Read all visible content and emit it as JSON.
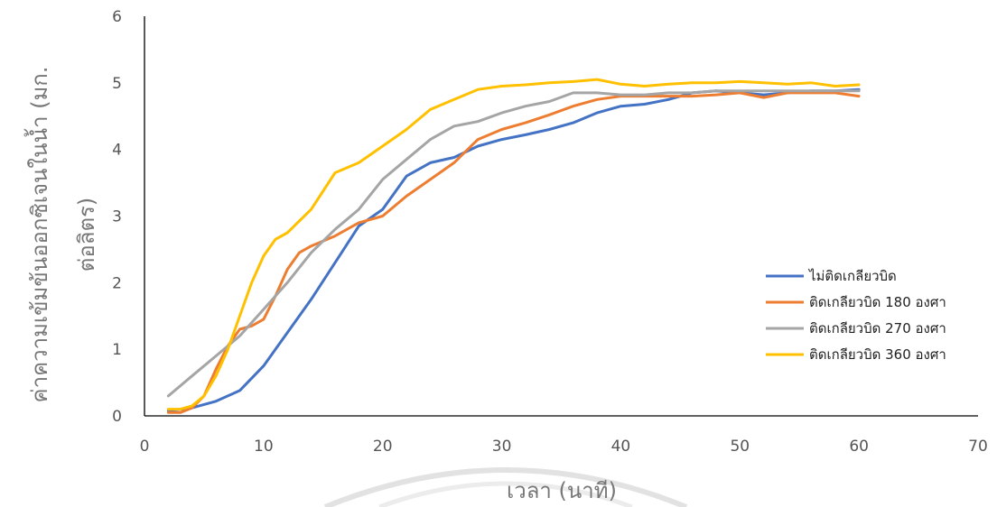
{
  "chart_data": {
    "type": "line",
    "title": "",
    "xlabel": "เวลา (นาที)",
    "ylabel_line1": "ค่าความเข้มข้นออกซิเจนในน้ำ (มก.",
    "ylabel_line2": "ต่อลิตร)",
    "xlim": [
      0,
      70
    ],
    "ylim": [
      0,
      6
    ],
    "xticks": [
      0,
      10,
      20,
      30,
      40,
      50,
      60,
      70
    ],
    "yticks": [
      0,
      1,
      2,
      3,
      4,
      5,
      6
    ],
    "grid": false,
    "legend_position": "right",
    "series": [
      {
        "name": "ไม่ติดเกลียวบิด",
        "color": "#4472C4",
        "points": [
          [
            2,
            0.08
          ],
          [
            4,
            0.12
          ],
          [
            6,
            0.22
          ],
          [
            8,
            0.38
          ],
          [
            10,
            0.75
          ],
          [
            12,
            1.25
          ],
          [
            14,
            1.75
          ],
          [
            16,
            2.3
          ],
          [
            18,
            2.85
          ],
          [
            20,
            3.1
          ],
          [
            22,
            3.6
          ],
          [
            24,
            3.8
          ],
          [
            26,
            3.88
          ],
          [
            28,
            4.05
          ],
          [
            30,
            4.15
          ],
          [
            32,
            4.22
          ],
          [
            34,
            4.3
          ],
          [
            36,
            4.4
          ],
          [
            38,
            4.55
          ],
          [
            40,
            4.65
          ],
          [
            42,
            4.68
          ],
          [
            44,
            4.75
          ],
          [
            46,
            4.85
          ],
          [
            48,
            4.88
          ],
          [
            50,
            4.85
          ],
          [
            52,
            4.82
          ],
          [
            54,
            4.85
          ],
          [
            56,
            4.88
          ],
          [
            58,
            4.88
          ],
          [
            60,
            4.9
          ]
        ]
      },
      {
        "name": "ติดเกลียวบิด 180 องศา",
        "color": "#ED7D31",
        "points": [
          [
            2,
            0.05
          ],
          [
            3,
            0.05
          ],
          [
            4,
            0.12
          ],
          [
            5,
            0.3
          ],
          [
            6,
            0.7
          ],
          [
            7,
            1.05
          ],
          [
            8,
            1.3
          ],
          [
            9,
            1.35
          ],
          [
            10,
            1.45
          ],
          [
            11,
            1.8
          ],
          [
            12,
            2.2
          ],
          [
            13,
            2.45
          ],
          [
            14,
            2.55
          ],
          [
            16,
            2.7
          ],
          [
            18,
            2.9
          ],
          [
            20,
            3.0
          ],
          [
            22,
            3.3
          ],
          [
            24,
            3.55
          ],
          [
            26,
            3.8
          ],
          [
            28,
            4.15
          ],
          [
            30,
            4.3
          ],
          [
            32,
            4.4
          ],
          [
            34,
            4.52
          ],
          [
            36,
            4.65
          ],
          [
            38,
            4.75
          ],
          [
            40,
            4.8
          ],
          [
            42,
            4.8
          ],
          [
            44,
            4.8
          ],
          [
            46,
            4.8
          ],
          [
            48,
            4.82
          ],
          [
            50,
            4.85
          ],
          [
            52,
            4.78
          ],
          [
            54,
            4.85
          ],
          [
            56,
            4.85
          ],
          [
            58,
            4.85
          ],
          [
            60,
            4.8
          ]
        ]
      },
      {
        "name": "ติดเกลียวบิด 270 องศา",
        "color": "#A5A5A5",
        "points": [
          [
            2,
            0.3
          ],
          [
            4,
            0.6
          ],
          [
            6,
            0.9
          ],
          [
            8,
            1.2
          ],
          [
            10,
            1.6
          ],
          [
            12,
            2.0
          ],
          [
            14,
            2.45
          ],
          [
            16,
            2.8
          ],
          [
            18,
            3.1
          ],
          [
            20,
            3.55
          ],
          [
            22,
            3.85
          ],
          [
            24,
            4.15
          ],
          [
            26,
            4.35
          ],
          [
            28,
            4.42
          ],
          [
            30,
            4.55
          ],
          [
            32,
            4.65
          ],
          [
            34,
            4.72
          ],
          [
            36,
            4.85
          ],
          [
            38,
            4.85
          ],
          [
            40,
            4.82
          ],
          [
            42,
            4.82
          ],
          [
            44,
            4.85
          ],
          [
            46,
            4.85
          ],
          [
            48,
            4.88
          ],
          [
            50,
            4.88
          ],
          [
            52,
            4.88
          ],
          [
            54,
            4.88
          ],
          [
            56,
            4.88
          ],
          [
            58,
            4.88
          ],
          [
            60,
            4.88
          ]
        ]
      },
      {
        "name": "ติดเกลียวบิด 360 องศา",
        "color": "#FFC000",
        "points": [
          [
            2,
            0.1
          ],
          [
            3,
            0.1
          ],
          [
            4,
            0.15
          ],
          [
            5,
            0.3
          ],
          [
            6,
            0.6
          ],
          [
            7,
            1.0
          ],
          [
            8,
            1.5
          ],
          [
            9,
            2.0
          ],
          [
            10,
            2.4
          ],
          [
            11,
            2.65
          ],
          [
            12,
            2.75
          ],
          [
            14,
            3.1
          ],
          [
            16,
            3.65
          ],
          [
            18,
            3.8
          ],
          [
            20,
            4.05
          ],
          [
            22,
            4.3
          ],
          [
            24,
            4.6
          ],
          [
            26,
            4.75
          ],
          [
            28,
            4.9
          ],
          [
            30,
            4.95
          ],
          [
            32,
            4.97
          ],
          [
            34,
            5.0
          ],
          [
            36,
            5.02
          ],
          [
            38,
            5.05
          ],
          [
            40,
            4.98
          ],
          [
            42,
            4.95
          ],
          [
            44,
            4.98
          ],
          [
            46,
            5.0
          ],
          [
            48,
            5.0
          ],
          [
            50,
            5.02
          ],
          [
            52,
            5.0
          ],
          [
            54,
            4.98
          ],
          [
            56,
            5.0
          ],
          [
            58,
            4.95
          ],
          [
            60,
            4.97
          ]
        ]
      }
    ]
  }
}
